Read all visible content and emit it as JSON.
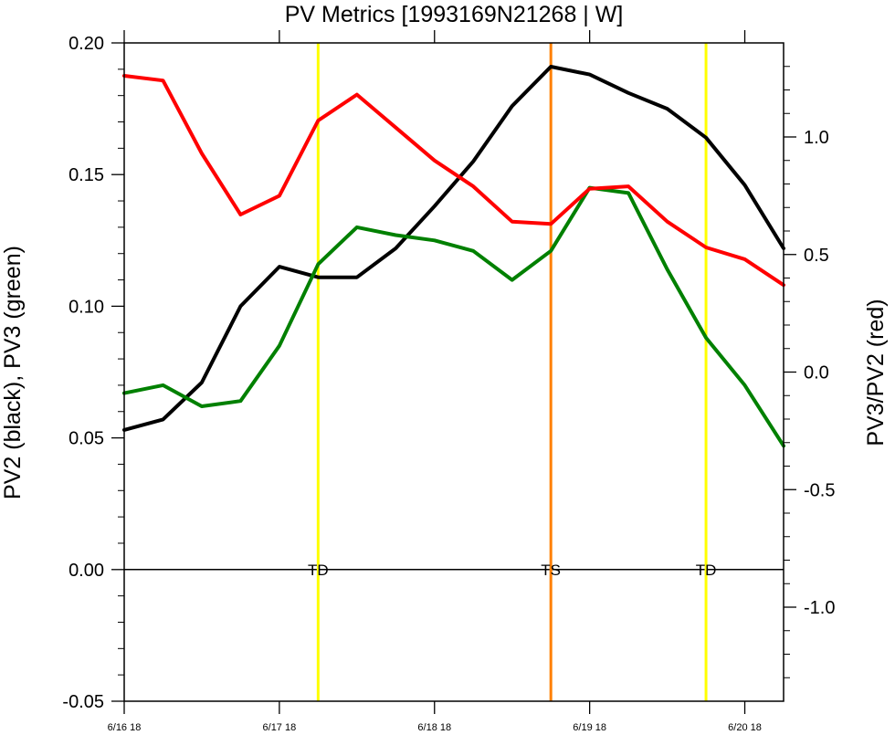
{
  "chart_data": {
    "type": "line",
    "title": "PV Metrics [1993169N21268 | W]",
    "ylabel_left": "PV2 (black), PV3 (green)",
    "ylabel_right": "PV3/PV2 (red)",
    "x_unit": "hours",
    "x_range": [
      0,
      102
    ],
    "x_ticks": [
      {
        "x": 0,
        "label": "6/16 18"
      },
      {
        "x": 24,
        "label": "6/17 18"
      },
      {
        "x": 48,
        "label": "6/18 18"
      },
      {
        "x": 72,
        "label": "6/19 18"
      },
      {
        "x": 96,
        "label": "6/20 18"
      }
    ],
    "ylim_left": [
      -0.05,
      0.2
    ],
    "ylim_right": [
      -1.4,
      1.4
    ],
    "left_ticks": [
      "0.20",
      "0.15",
      "0.10",
      "0.05",
      "0.00",
      "-0.05"
    ],
    "left_tick_values": [
      0.2,
      0.15,
      0.1,
      0.05,
      0.0,
      -0.05
    ],
    "right_ticks": [
      "1.0",
      "0.5",
      "0.0",
      "-0.5",
      "-1.0"
    ],
    "right_tick_values": [
      1.0,
      0.5,
      0.0,
      -0.5,
      -1.0
    ],
    "zero_line": 0.0,
    "series": [
      {
        "name": "PV2",
        "color": "#000000",
        "axis": "left",
        "x": [
          0,
          6,
          12,
          18,
          24,
          30,
          36,
          42,
          48,
          54,
          60,
          66,
          72,
          78,
          84,
          90,
          96,
          102
        ],
        "values": [
          0.053,
          0.057,
          0.071,
          0.1,
          0.115,
          0.111,
          0.111,
          0.122,
          0.138,
          0.155,
          0.176,
          0.191,
          0.188,
          0.181,
          0.175,
          0.164,
          0.146,
          0.122
        ]
      },
      {
        "name": "PV3",
        "color": "#008000",
        "axis": "left",
        "x": [
          0,
          6,
          12,
          18,
          24,
          30,
          36,
          42,
          48,
          54,
          60,
          66,
          72,
          78,
          84,
          90,
          96,
          102
        ],
        "values": [
          0.067,
          0.07,
          0.062,
          0.064,
          0.085,
          0.116,
          0.13,
          0.127,
          0.125,
          0.121,
          0.11,
          0.121,
          0.145,
          0.143,
          0.114,
          0.088,
          0.07,
          0.047
        ]
      },
      {
        "name": "PV3/PV2",
        "color": "#ff0000",
        "axis": "right",
        "x": [
          0,
          6,
          12,
          18,
          24,
          30,
          36,
          42,
          48,
          54,
          60,
          66,
          72,
          78,
          84,
          90,
          96,
          102
        ],
        "values": [
          1.26,
          1.24,
          0.93,
          0.67,
          0.75,
          1.07,
          1.18,
          1.04,
          0.9,
          0.79,
          0.64,
          0.63,
          0.78,
          0.79,
          0.64,
          0.53,
          0.48,
          0.37
        ]
      }
    ],
    "stage_lines": [
      {
        "x": 30,
        "label": "TD",
        "color": "#ffff00"
      },
      {
        "x": 66,
        "label": "TS",
        "color": "#ff8000"
      },
      {
        "x": 90,
        "label": "TD",
        "color": "#ffff00"
      }
    ]
  }
}
